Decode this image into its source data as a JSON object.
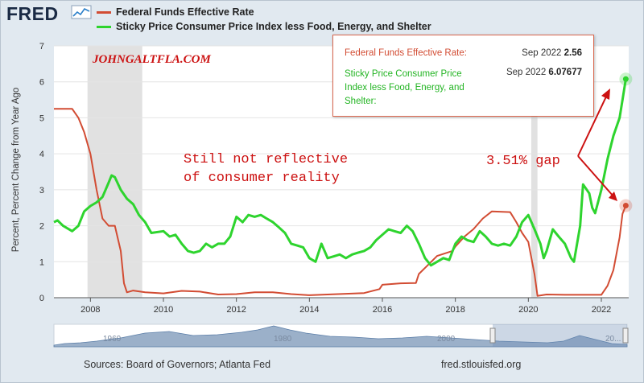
{
  "header": {
    "logo_text": "FRED"
  },
  "legend": [
    {
      "label": "Federal Funds Effective Rate",
      "color": "#d24c33"
    },
    {
      "label": "Sticky Price Consumer Price Index less Food, Energy, and Shelter",
      "color": "#2ed42e"
    }
  ],
  "tooltip": {
    "series1_label": "Federal Funds Effective Rate:",
    "series1_date": "Sep 2022",
    "series1_value": "2.56",
    "series2_label_line1": "Sticky Price Consumer Price",
    "series2_label_line2": "Index less Food, Energy, and",
    "series2_label_line3": "Shelter:",
    "series2_date": "Sep 2022",
    "series2_value": "6.07677"
  },
  "annotations": {
    "watermark": "JOHNGALTFLA.COM",
    "comment_line1": "Still not reflective",
    "comment_line2": "of consumer reality",
    "gap_text": "3.51% gap"
  },
  "footer": {
    "sources": "Sources: Board of Governors; Atlanta Fed",
    "url": "fred.stlouisfed.org"
  },
  "navigator": {
    "tick_labels": [
      "1960",
      "1980",
      "2000",
      "20..."
    ]
  },
  "chart_data": {
    "type": "line",
    "ylabel": "Percent, Percent Change from Year Ago",
    "ylim": [
      0,
      7
    ],
    "xlim": [
      2007.0,
      2022.75
    ],
    "yticks": [
      "0",
      "1",
      "2",
      "3",
      "4",
      "5",
      "6",
      "7"
    ],
    "xticks": [
      "2008",
      "2010",
      "2012",
      "2014",
      "2016",
      "2018",
      "2020",
      "2022"
    ],
    "recessions": [
      [
        2007.92,
        2009.42
      ],
      [
        2020.08,
        2020.25
      ]
    ],
    "series": [
      {
        "name": "Federal Funds Effective Rate",
        "color": "#d24c33",
        "points": [
          [
            2007.0,
            5.25
          ],
          [
            2007.5,
            5.25
          ],
          [
            2007.67,
            5.0
          ],
          [
            2007.83,
            4.6
          ],
          [
            2008.0,
            4.0
          ],
          [
            2008.17,
            3.0
          ],
          [
            2008.33,
            2.2
          ],
          [
            2008.5,
            2.0
          ],
          [
            2008.67,
            2.0
          ],
          [
            2008.83,
            1.3
          ],
          [
            2008.92,
            0.4
          ],
          [
            2009.0,
            0.15
          ],
          [
            2009.17,
            0.2
          ],
          [
            2009.5,
            0.15
          ],
          [
            2010.0,
            0.12
          ],
          [
            2010.5,
            0.19
          ],
          [
            2011.0,
            0.17
          ],
          [
            2011.5,
            0.09
          ],
          [
            2012.0,
            0.1
          ],
          [
            2012.5,
            0.15
          ],
          [
            2013.0,
            0.15
          ],
          [
            2013.5,
            0.1
          ],
          [
            2014.0,
            0.07
          ],
          [
            2014.5,
            0.09
          ],
          [
            2015.0,
            0.11
          ],
          [
            2015.5,
            0.13
          ],
          [
            2015.92,
            0.24
          ],
          [
            2016.0,
            0.36
          ],
          [
            2016.5,
            0.4
          ],
          [
            2016.92,
            0.41
          ],
          [
            2017.0,
            0.66
          ],
          [
            2017.25,
            0.91
          ],
          [
            2017.5,
            1.16
          ],
          [
            2017.92,
            1.3
          ],
          [
            2018.0,
            1.42
          ],
          [
            2018.25,
            1.7
          ],
          [
            2018.5,
            1.91
          ],
          [
            2018.75,
            2.2
          ],
          [
            2019.0,
            2.4
          ],
          [
            2019.5,
            2.38
          ],
          [
            2019.67,
            2.1
          ],
          [
            2019.83,
            1.8
          ],
          [
            2020.0,
            1.55
          ],
          [
            2020.17,
            0.65
          ],
          [
            2020.25,
            0.05
          ],
          [
            2020.5,
            0.09
          ],
          [
            2021.0,
            0.08
          ],
          [
            2021.5,
            0.08
          ],
          [
            2022.0,
            0.08
          ],
          [
            2022.17,
            0.33
          ],
          [
            2022.33,
            0.77
          ],
          [
            2022.5,
            1.68
          ],
          [
            2022.58,
            2.33
          ],
          [
            2022.67,
            2.56
          ]
        ]
      },
      {
        "name": "Sticky Price Consumer Price Index less Food, Energy, and Shelter",
        "color": "#2ed42e",
        "points": [
          [
            2007.0,
            2.1
          ],
          [
            2007.1,
            2.15
          ],
          [
            2007.25,
            2.0
          ],
          [
            2007.5,
            1.85
          ],
          [
            2007.67,
            2.0
          ],
          [
            2007.83,
            2.4
          ],
          [
            2008.0,
            2.55
          ],
          [
            2008.17,
            2.65
          ],
          [
            2008.33,
            2.8
          ],
          [
            2008.5,
            3.2
          ],
          [
            2008.58,
            3.4
          ],
          [
            2008.67,
            3.35
          ],
          [
            2008.83,
            3.0
          ],
          [
            2009.0,
            2.75
          ],
          [
            2009.17,
            2.6
          ],
          [
            2009.33,
            2.3
          ],
          [
            2009.5,
            2.1
          ],
          [
            2009.67,
            1.8
          ],
          [
            2010.0,
            1.85
          ],
          [
            2010.17,
            1.7
          ],
          [
            2010.33,
            1.75
          ],
          [
            2010.5,
            1.5
          ],
          [
            2010.67,
            1.3
          ],
          [
            2010.83,
            1.25
          ],
          [
            2011.0,
            1.3
          ],
          [
            2011.17,
            1.5
          ],
          [
            2011.33,
            1.4
          ],
          [
            2011.5,
            1.5
          ],
          [
            2011.67,
            1.5
          ],
          [
            2011.83,
            1.7
          ],
          [
            2012.0,
            2.25
          ],
          [
            2012.17,
            2.1
          ],
          [
            2012.33,
            2.3
          ],
          [
            2012.5,
            2.25
          ],
          [
            2012.67,
            2.3
          ],
          [
            2012.83,
            2.2
          ],
          [
            2013.0,
            2.1
          ],
          [
            2013.17,
            1.95
          ],
          [
            2013.33,
            1.8
          ],
          [
            2013.5,
            1.5
          ],
          [
            2013.67,
            1.45
          ],
          [
            2013.83,
            1.4
          ],
          [
            2014.0,
            1.1
          ],
          [
            2014.17,
            1.0
          ],
          [
            2014.33,
            1.5
          ],
          [
            2014.5,
            1.1
          ],
          [
            2014.67,
            1.15
          ],
          [
            2014.83,
            1.2
          ],
          [
            2015.0,
            1.1
          ],
          [
            2015.17,
            1.2
          ],
          [
            2015.33,
            1.25
          ],
          [
            2015.5,
            1.3
          ],
          [
            2015.67,
            1.4
          ],
          [
            2015.83,
            1.6
          ],
          [
            2016.0,
            1.75
          ],
          [
            2016.17,
            1.9
          ],
          [
            2016.33,
            1.85
          ],
          [
            2016.5,
            1.8
          ],
          [
            2016.67,
            2.0
          ],
          [
            2016.83,
            1.85
          ],
          [
            2017.0,
            1.5
          ],
          [
            2017.17,
            1.1
          ],
          [
            2017.33,
            0.9
          ],
          [
            2017.5,
            1.0
          ],
          [
            2017.67,
            1.1
          ],
          [
            2017.83,
            1.05
          ],
          [
            2018.0,
            1.5
          ],
          [
            2018.17,
            1.7
          ],
          [
            2018.33,
            1.6
          ],
          [
            2018.5,
            1.55
          ],
          [
            2018.67,
            1.85
          ],
          [
            2018.83,
            1.7
          ],
          [
            2019.0,
            1.5
          ],
          [
            2019.17,
            1.45
          ],
          [
            2019.33,
            1.5
          ],
          [
            2019.5,
            1.45
          ],
          [
            2019.67,
            1.7
          ],
          [
            2019.83,
            2.1
          ],
          [
            2020.0,
            2.3
          ],
          [
            2020.17,
            1.9
          ],
          [
            2020.33,
            1.5
          ],
          [
            2020.42,
            1.1
          ],
          [
            2020.5,
            1.3
          ],
          [
            2020.67,
            1.9
          ],
          [
            2020.83,
            1.7
          ],
          [
            2021.0,
            1.5
          ],
          [
            2021.17,
            1.1
          ],
          [
            2021.25,
            1.0
          ],
          [
            2021.42,
            2.0
          ],
          [
            2021.5,
            3.15
          ],
          [
            2021.67,
            2.9
          ],
          [
            2021.75,
            2.5
          ],
          [
            2021.83,
            2.35
          ],
          [
            2022.0,
            3.0
          ],
          [
            2022.17,
            3.85
          ],
          [
            2022.33,
            4.5
          ],
          [
            2022.5,
            5.0
          ],
          [
            2022.58,
            5.5
          ],
          [
            2022.67,
            6.07677
          ]
        ]
      }
    ]
  }
}
